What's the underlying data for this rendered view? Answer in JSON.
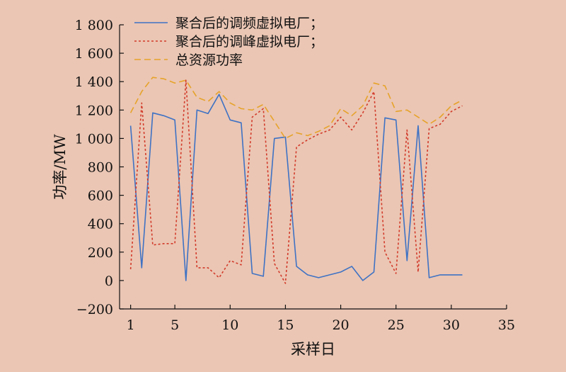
{
  "chart_data": {
    "type": "line",
    "xlabel": "采样日",
    "ylabel": "功率/MW",
    "xlim": [
      0,
      35
    ],
    "ylim": [
      -200,
      1800
    ],
    "xticks": [
      1,
      5,
      10,
      15,
      20,
      25,
      30,
      35
    ],
    "yticks": [
      -200,
      0,
      200,
      400,
      600,
      800,
      1000,
      1200,
      1400,
      1600,
      1800
    ],
    "ytick_labels": [
      "−200",
      "0",
      "200",
      "400",
      "600",
      "800",
      "1 000",
      "1 200",
      "1 400",
      "1 600",
      "1 800"
    ],
    "grid": false,
    "legend_position": "top-left",
    "series": [
      {
        "name": "聚合后的调频虚拟电厂；",
        "color": "#3e72c4",
        "dash": "solid",
        "x": [
          1,
          2,
          3,
          4,
          5,
          6,
          7,
          8,
          9,
          10,
          11,
          12,
          13,
          14,
          15,
          16,
          17,
          18,
          19,
          20,
          21,
          22,
          23,
          24,
          25,
          26,
          27,
          28,
          29,
          30,
          31
        ],
        "values": [
          1090,
          90,
          1180,
          1160,
          1130,
          0,
          1200,
          1175,
          1310,
          1130,
          1110,
          50,
          30,
          1000,
          1010,
          100,
          40,
          20,
          40,
          60,
          100,
          0,
          60,
          1145,
          1130,
          140,
          1090,
          20,
          40,
          40,
          40
        ]
      },
      {
        "name": "聚合后的调峰虚拟电厂；",
        "color": "#d23a2a",
        "dash": "dotted",
        "x": [
          1,
          2,
          3,
          4,
          5,
          6,
          7,
          8,
          9,
          10,
          11,
          12,
          13,
          14,
          15,
          16,
          17,
          18,
          19,
          20,
          21,
          22,
          23,
          24,
          25,
          26,
          27,
          28,
          29,
          30,
          31
        ],
        "values": [
          80,
          1250,
          250,
          260,
          260,
          1410,
          90,
          90,
          20,
          140,
          110,
          1150,
          1210,
          120,
          -20,
          940,
          990,
          1030,
          1060,
          1150,
          1060,
          1180,
          1330,
          200,
          50,
          1060,
          60,
          1070,
          1100,
          1190,
          1230
        ]
      },
      {
        "name": "总资源功率",
        "color": "#e6a32a",
        "dash": "dashed",
        "x": [
          1,
          2,
          3,
          4,
          5,
          6,
          7,
          8,
          9,
          10,
          11,
          12,
          13,
          14,
          15,
          16,
          17,
          18,
          19,
          20,
          21,
          22,
          23,
          24,
          25,
          26,
          27,
          28,
          29,
          30,
          31
        ],
        "values": [
          1180,
          1330,
          1430,
          1420,
          1390,
          1410,
          1290,
          1260,
          1330,
          1250,
          1210,
          1200,
          1240,
          1120,
          1000,
          1040,
          1020,
          1050,
          1090,
          1210,
          1160,
          1230,
          1390,
          1370,
          1190,
          1200,
          1150,
          1100,
          1150,
          1230,
          1270
        ]
      }
    ]
  }
}
